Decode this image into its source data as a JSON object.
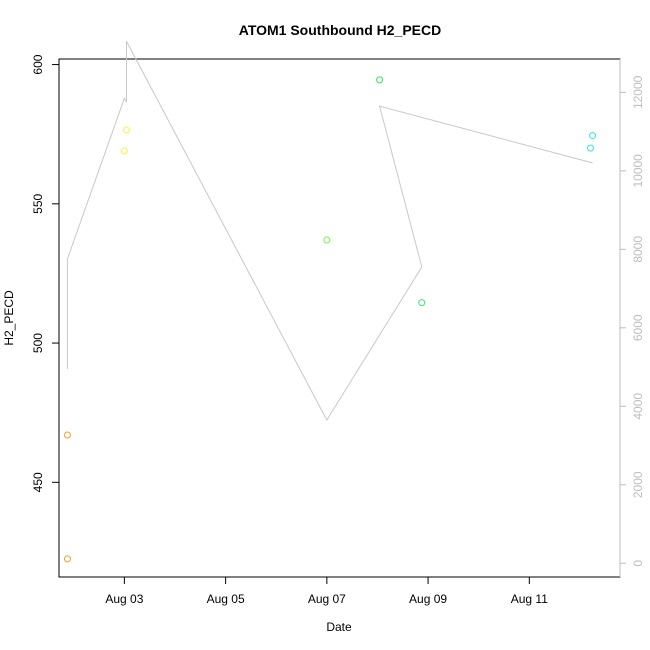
{
  "chart_data": {
    "type": "scatter",
    "title": "ATOM1 Southbound H2_PECD",
    "xlabel": "Date",
    "ylabel": "H2_PECD",
    "x_axis": {
      "type": "date",
      "range": [
        "2023-08-01T17:00",
        "2023-08-12T19:00"
      ],
      "ticks": [
        {
          "value": "2023-08-03",
          "label": "Aug 03"
        },
        {
          "value": "2023-08-05",
          "label": "Aug 05"
        },
        {
          "value": "2023-08-07",
          "label": "Aug 07"
        },
        {
          "value": "2023-08-09",
          "label": "Aug 09"
        },
        {
          "value": "2023-08-11",
          "label": "Aug 11"
        }
      ]
    },
    "y_axis": {
      "range": [
        416,
        602
      ],
      "ticks": [
        450,
        500,
        550,
        600
      ]
    },
    "y2_axis": {
      "side": "right",
      "color": "#bdbdbd",
      "range": [
        -350,
        12850
      ],
      "ticks": [
        0,
        2000,
        4000,
        6000,
        8000,
        10000,
        12000
      ]
    },
    "points": [
      {
        "x": "2023-08-01T21:00",
        "y": 467,
        "color": "#ff9a2e"
      },
      {
        "x": "2023-08-01T21:00",
        "y": 422.5,
        "color": "#ff9a2e"
      },
      {
        "x": "2023-08-03T00:00",
        "y": 569,
        "color": "#f5f542"
      },
      {
        "x": "2023-08-03T01:00",
        "y": 576.5,
        "color": "#f5f542"
      },
      {
        "x": "2023-08-07T00:00",
        "y": 537,
        "color": "#79f542"
      },
      {
        "x": "2023-08-08T01:00",
        "y": 594.5,
        "color": "#2eea52"
      },
      {
        "x": "2023-08-08T21:00",
        "y": 514.5,
        "color": "#2eea6e"
      },
      {
        "x": "2023-08-12T05:00",
        "y": 570,
        "color": "#2ee8d0"
      },
      {
        "x": "2023-08-12T06:00",
        "y": 574.5,
        "color": "#2ee8d0"
      }
    ],
    "secondary_series": {
      "axis": "y2",
      "color": "#c8c8c8",
      "points": [
        {
          "x": "2023-08-01T21:00",
          "y": 4950
        },
        {
          "x": "2023-08-01T21:00",
          "y": 7750
        },
        {
          "x": "2023-08-03T00:00",
          "y": 11850
        },
        {
          "x": "2023-08-03T01:00",
          "y": 11750
        },
        {
          "x": "2023-08-03T01:00",
          "y": 13300
        },
        {
          "x": "2023-08-07T00:00",
          "y": 3650
        },
        {
          "x": "2023-08-08T21:00",
          "y": 7550
        },
        {
          "x": "2023-08-08T01:00",
          "y": 11650
        },
        {
          "x": "2023-08-12T06:00",
          "y": 10200
        }
      ]
    },
    "grid": false,
    "legend": "none"
  }
}
